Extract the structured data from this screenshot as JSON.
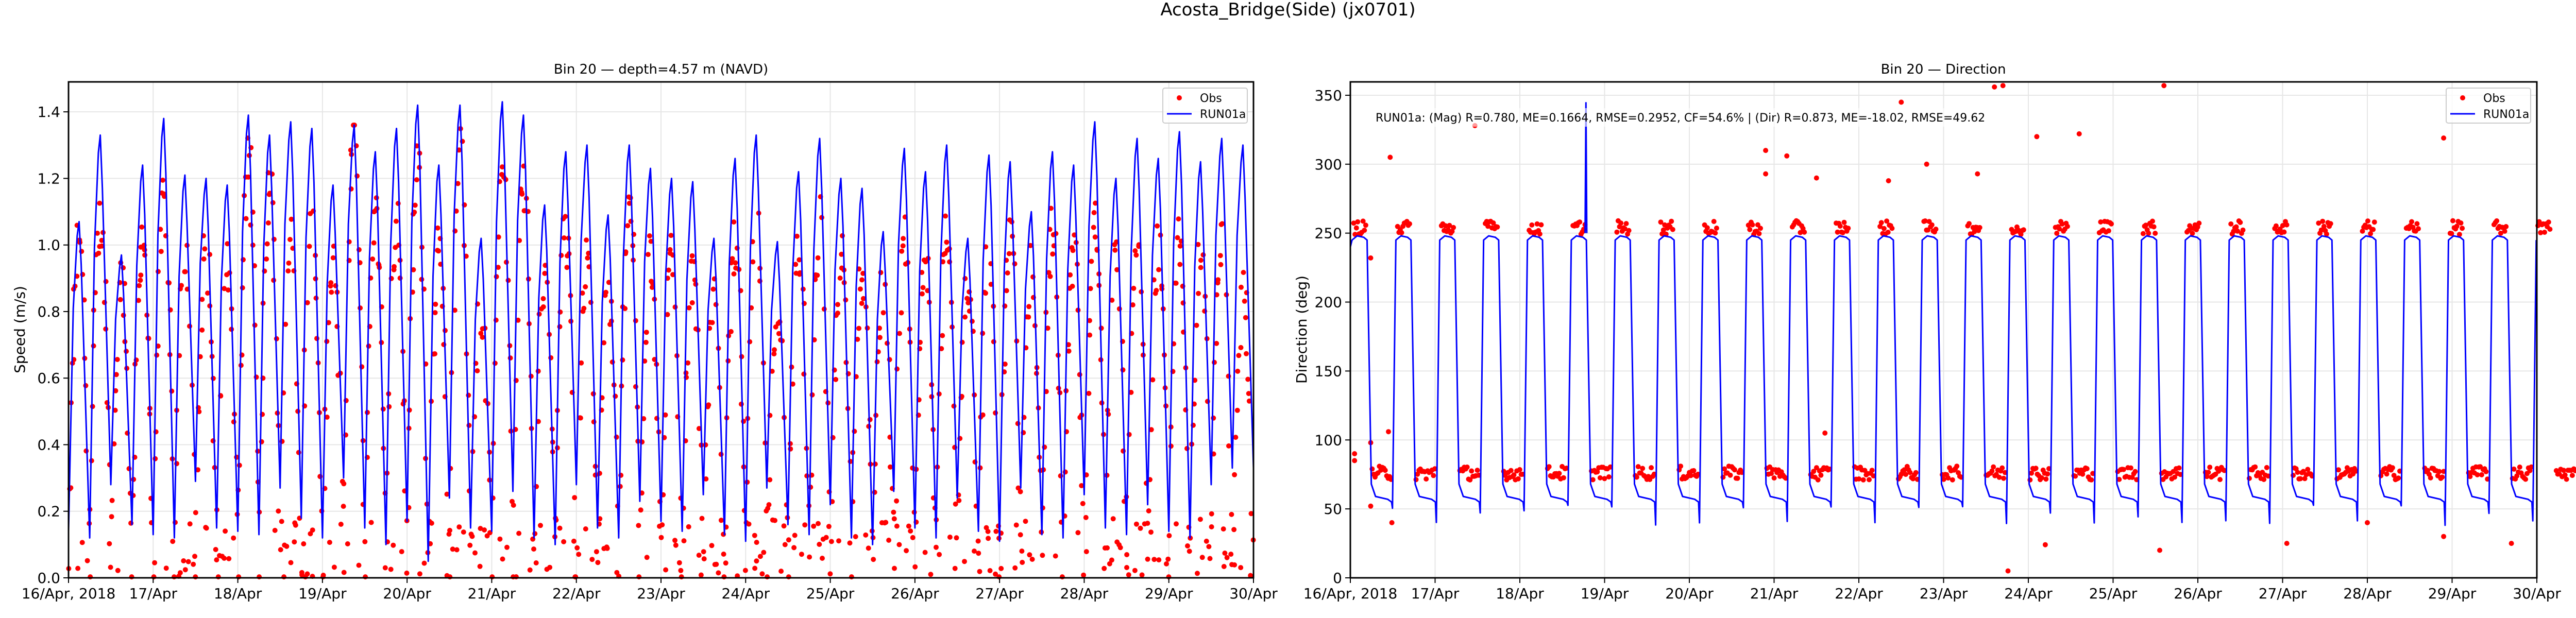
{
  "figure": {
    "suptitle": "Acosta_Bridge(Side) (jx0701)"
  },
  "chart_data": [
    {
      "type": "line",
      "title": "Bin 20 — depth=4.57 m (NAVD)",
      "xlabel": "",
      "ylabel": "Speed (m/s)",
      "x_start": "2018-04-16",
      "x_end": "2018-04-30",
      "xlim_days": [
        0,
        14
      ],
      "ylim": [
        0,
        1.49
      ],
      "yticks": [
        0.0,
        0.2,
        0.4,
        0.6,
        0.8,
        1.0,
        1.2,
        1.4
      ],
      "ytick_labels": [
        "0.0",
        "0.2",
        "0.4",
        "0.6",
        "0.8",
        "1.0",
        "1.2",
        "1.4"
      ],
      "xtick_labels": [
        "16/Apr, 2018",
        "17/Apr",
        "18/Apr",
        "19/Apr",
        "20/Apr",
        "21/Apr",
        "22/Apr",
        "23/Apr",
        "24/Apr",
        "25/Apr",
        "26/Apr",
        "27/Apr",
        "28/Apr",
        "29/Apr",
        "30/Apr"
      ],
      "grid": true,
      "legend": {
        "placement": "top-right",
        "entries": [
          "Obs",
          "RUN01a"
        ]
      },
      "series": [
        {
          "name": "RUN01a",
          "kind": "line",
          "color": "#0000ff",
          "description": "Model speed; alternating extrema every ~3.1 h (peaks, troughs) across 16–30 Apr",
          "peaks": [
            1.07,
            1.33,
            0.97,
            1.24,
            1.38,
            1.21,
            1.2,
            1.18,
            1.39,
            1.33,
            1.37,
            1.35,
            1.18,
            1.36,
            1.28,
            1.35,
            1.42,
            1.24,
            1.42,
            1.02,
            1.43,
            1.39,
            1.12,
            1.28,
            1.3,
            1.09,
            1.3,
            1.23,
            1.2,
            1.19,
            1.02,
            1.26,
            1.33,
            1.01,
            1.22,
            1.32,
            1.2,
            1.17,
            1.04,
            1.29,
            1.22,
            1.3,
            1.02,
            1.27,
            1.25,
            1.1,
            1.28,
            1.24,
            1.37,
            1.2,
            1.32,
            1.26,
            1.34,
            1.25,
            1.32,
            1.3
          ],
          "troughs": [
            0.14,
            0.12,
            0.28,
            0.16,
            0.13,
            0.12,
            0.29,
            0.15,
            0.14,
            0.13,
            0.27,
            0.18,
            0.12,
            0.3,
            0.15,
            0.1,
            0.17,
            0.05,
            0.24,
            0.15,
            0.14,
            0.26,
            0.12,
            0.1,
            0.28,
            0.15,
            0.12,
            0.23,
            0.17,
            0.14,
            0.25,
            0.13,
            0.11,
            0.27,
            0.16,
            0.13,
            0.22,
            0.12,
            0.1,
            0.26,
            0.15,
            0.12,
            0.24,
            0.14,
            0.11,
            0.27,
            0.13,
            0.12,
            0.25,
            0.15,
            0.13,
            0.22,
            0.14,
            0.12,
            0.28,
            0.33
          ]
        },
        {
          "name": "Obs",
          "kind": "scatter",
          "color": "#ff0000",
          "description": "Observed speed; dense scatter ~30-min sampling, peaks ~0.7–0.8× model peaks, broad spread toward 0",
          "obs_peak_ratio": 0.77,
          "obs_peak_values": [
            1.03,
            1.07,
            0.87,
            0.98,
            1.12,
            1.0,
            0.98,
            0.93,
            1.25,
            1.18,
            1.07,
            1.07,
            0.95,
            1.34,
            1.1,
            1.05,
            1.24,
            0.98,
            1.3,
            0.8,
            1.26,
            1.19,
            0.93,
            1.04,
            0.93,
            0.88,
            1.13,
            0.95,
            0.97,
            0.92,
            0.85,
            1.02,
            1.05,
            0.83,
            0.95,
            1.07,
            0.98,
            0.92,
            0.88,
            1.0,
            0.98,
            1.03,
            0.85,
            1.0,
            1.02,
            0.92,
            1.05,
            0.98,
            1.08,
            0.97,
            1.05,
            0.98,
            1.03,
            0.99,
            1.03,
            0.85
          ]
        }
      ]
    },
    {
      "type": "line",
      "title": "Bin 20 — Direction",
      "xlabel": "",
      "ylabel": "Direction (deg)",
      "x_start": "2018-04-16",
      "x_end": "2018-04-30",
      "xlim_days": [
        0,
        14
      ],
      "ylim": [
        0,
        359.7
      ],
      "yticks": [
        0,
        50,
        100,
        150,
        200,
        250,
        300,
        350
      ],
      "ytick_labels": [
        "0",
        "50",
        "100",
        "150",
        "200",
        "250",
        "300",
        "350"
      ],
      "xtick_labels": [
        "16/Apr, 2018",
        "17/Apr",
        "18/Apr",
        "19/Apr",
        "20/Apr",
        "21/Apr",
        "22/Apr",
        "23/Apr",
        "24/Apr",
        "25/Apr",
        "26/Apr",
        "27/Apr",
        "28/Apr",
        "29/Apr",
        "30/Apr"
      ],
      "grid": true,
      "legend": {
        "placement": "top-right",
        "entries": [
          "Obs",
          "RUN01a"
        ]
      },
      "annotation": "RUN01a: (Mag) R=0.780, ME=0.1664, RMSE=0.2952, CF=54.6% | (Dir) R=0.873, ME=-18.02, RMSE=49.62",
      "stats": {
        "mag": {
          "R": 0.78,
          "ME": 0.1664,
          "RMSE": 0.2952,
          "CF_percent": 54.6
        },
        "dir": {
          "R": 0.873,
          "ME": -18.02,
          "RMSE": 49.62
        }
      },
      "series": [
        {
          "name": "RUN01a",
          "kind": "line",
          "color": "#0000ff",
          "description": "Model direction; flood ~248 deg and ebb ~57 deg alternating ~twice daily (period ~12.4 h), spike to ~345 deg near 18.8 Apr",
          "flood_level": 248,
          "ebb_level": 57,
          "ebb_min": 38,
          "first_flood_start_day": 0.0,
          "flood_durations_hours": 4.6,
          "phase_period_hours": 12.42,
          "spike": {
            "day": 2.78,
            "value": 345
          }
        },
        {
          "name": "Obs",
          "kind": "scatter",
          "color": "#ff0000",
          "description": "Observed direction; flood cluster ~250–258 deg, ebb cluster ~70–82 deg, occasional outliers 20–358 deg",
          "flood_level": 254,
          "ebb_level": 76,
          "outliers": [
            [
              0.47,
              305
            ],
            [
              0.45,
              106
            ],
            [
              0.49,
              40
            ],
            [
              0.05,
              90
            ],
            [
              0.05,
              85
            ],
            [
              0.24,
              232
            ],
            [
              0.24,
              98
            ],
            [
              0.24,
              52
            ],
            [
              1.47,
              328
            ],
            [
              4.9,
              310
            ],
            [
              4.9,
              293
            ],
            [
              5.15,
              306
            ],
            [
              5.5,
              290
            ],
            [
              5.6,
              105
            ],
            [
              6.35,
              288
            ],
            [
              6.5,
              345
            ],
            [
              6.8,
              300
            ],
            [
              7.4,
              293
            ],
            [
              7.6,
              356
            ],
            [
              7.7,
              357
            ],
            [
              7.76,
              5
            ],
            [
              8.1,
              320
            ],
            [
              8.2,
              24
            ],
            [
              8.6,
              322
            ],
            [
              9.6,
              357
            ],
            [
              9.55,
              20
            ],
            [
              11.05,
              25
            ],
            [
              12.0,
              40
            ],
            [
              12.9,
              319
            ],
            [
              12.9,
              30
            ],
            [
              13.7,
              25
            ]
          ]
        }
      ]
    }
  ]
}
